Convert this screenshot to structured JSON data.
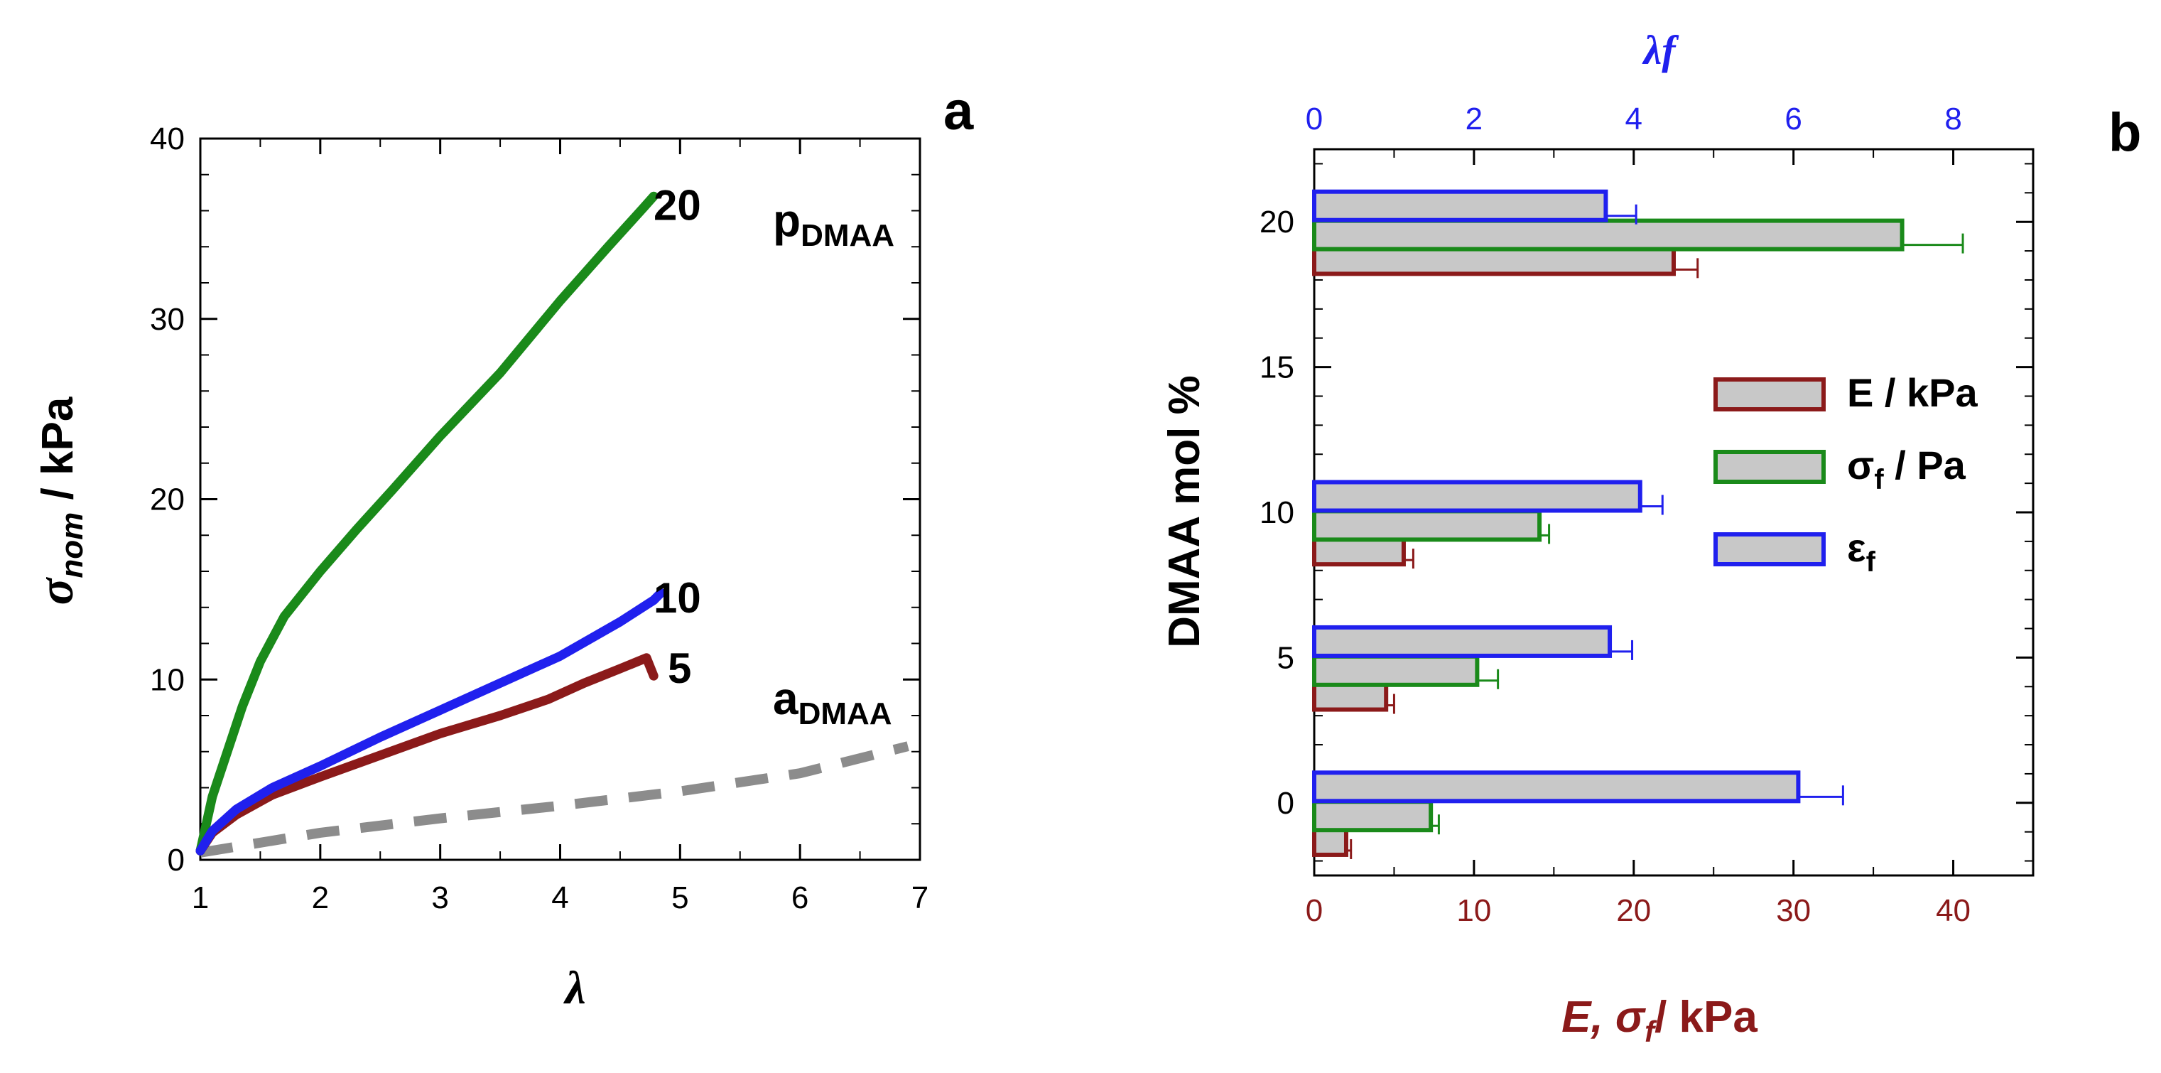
{
  "chart_data": [
    {
      "type": "line",
      "panel_label": "a",
      "title": "",
      "xlabel": "λ",
      "ylabel_main": "σ",
      "ylabel_sub": "nom",
      "ylabel_rest": " / kPa",
      "xlim": [
        1,
        7
      ],
      "ylim": [
        0,
        40
      ],
      "xticks": [
        1,
        2,
        3,
        4,
        5,
        6,
        7
      ],
      "yticks": [
        0,
        10,
        20,
        30,
        40
      ],
      "grid": false,
      "annotation_pdmaa": {
        "main": "p",
        "sub": "DMAA"
      },
      "annotation_admaa": {
        "main": "a",
        "sub": "DMAA"
      },
      "series": [
        {
          "name": "20",
          "label": "20",
          "color": "#1a8a1a",
          "style": "solid",
          "x": [
            1.0,
            1.05,
            1.1,
            1.2,
            1.35,
            1.5,
            1.7,
            2.0,
            2.3,
            2.6,
            3.0,
            3.5,
            4.0,
            4.4,
            4.7,
            4.78
          ],
          "y": [
            0.5,
            2.0,
            3.5,
            5.5,
            8.5,
            11.0,
            13.5,
            16.0,
            18.3,
            20.5,
            23.5,
            27.0,
            31.0,
            34.0,
            36.2,
            36.8
          ]
        },
        {
          "name": "10",
          "label": "10",
          "color": "#2020ee",
          "style": "solid",
          "x": [
            1.0,
            1.1,
            1.3,
            1.6,
            2.0,
            2.5,
            3.0,
            3.5,
            4.0,
            4.5,
            4.78,
            4.84
          ],
          "y": [
            0.5,
            1.6,
            2.8,
            4.0,
            5.2,
            6.8,
            8.3,
            9.8,
            11.3,
            13.2,
            14.4,
            14.8
          ]
        },
        {
          "name": "5",
          "label": "5",
          "color": "#8b1a1a",
          "style": "solid",
          "x": [
            1.0,
            1.1,
            1.3,
            1.6,
            2.0,
            2.5,
            3.0,
            3.5,
            3.9,
            4.2,
            4.5,
            4.72,
            4.78
          ],
          "y": [
            0.5,
            1.5,
            2.5,
            3.6,
            4.6,
            5.8,
            7.0,
            8.0,
            8.9,
            9.8,
            10.6,
            11.2,
            10.2
          ]
        },
        {
          "name": "aDMAA",
          "label": "",
          "color": "#8c8c8c",
          "style": "dashed",
          "x": [
            1.0,
            2.0,
            3.0,
            4.0,
            5.0,
            6.0,
            6.9
          ],
          "y": [
            0.4,
            1.5,
            2.3,
            3.0,
            3.8,
            4.8,
            6.3
          ]
        }
      ]
    },
    {
      "type": "bar",
      "orientation": "horizontal",
      "panel_label": "b",
      "xlabel_bottom_main": "E, σ",
      "xlabel_bottom_sub": "f",
      "xlabel_bottom_rest": "/ kPa",
      "xlabel_top": "λf",
      "ylabel": "DMAA mol %",
      "xlim_bottom": [
        0,
        45
      ],
      "xlim_top": [
        0,
        9
      ],
      "ylim": [
        -2.5,
        22.5
      ],
      "xticks_bottom": [
        0,
        10,
        20,
        30,
        40
      ],
      "xticks_top": [
        0,
        2,
        4,
        6,
        8
      ],
      "yticks": [
        0,
        5,
        10,
        15,
        20
      ],
      "categories": [
        0,
        5,
        10,
        20
      ],
      "series": [
        {
          "name": "E / kPa",
          "legend_main": "E / kPa",
          "legend_sub": "",
          "legend_rest": "",
          "color": "#8b1a1a",
          "axis": "bottom",
          "values": [
            2.0,
            4.5,
            5.6,
            22.5
          ],
          "errors": [
            0.3,
            0.5,
            0.6,
            1.5
          ]
        },
        {
          "name": "σf / Pa",
          "legend_main": "σ",
          "legend_sub": "f",
          "legend_rest": " / Pa",
          "color": "#1a8a1a",
          "axis": "bottom",
          "values": [
            7.3,
            10.2,
            14.1,
            36.8
          ],
          "errors": [
            0.5,
            1.3,
            0.6,
            3.8
          ]
        },
        {
          "name": "εf",
          "legend_main": "ε",
          "legend_sub": "f",
          "legend_rest": "",
          "color": "#2020ee",
          "axis": "top",
          "values": [
            6.06,
            3.7,
            4.08,
            3.65
          ],
          "errors": [
            0.56,
            0.28,
            0.28,
            0.38
          ]
        }
      ]
    }
  ]
}
